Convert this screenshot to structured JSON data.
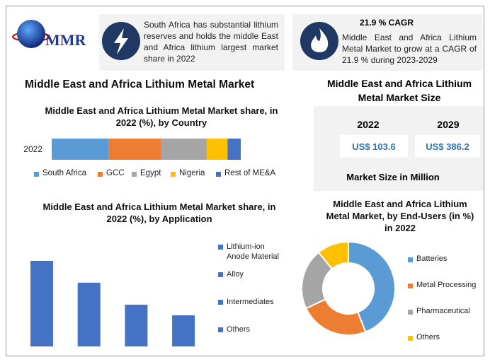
{
  "header": {
    "logo": "MMR",
    "facts": [
      {
        "text": "South Africa has substantial lithium reserves and holds the middle East and Africa lithium largest market share in 2022"
      },
      {
        "title": "21.9 % CAGR",
        "text": "Middle East and Africa Lithium Metal Market to grow at a CAGR of 21.9 % during 2023-2029"
      }
    ]
  },
  "title": "Middle East and Africa Lithium Metal Market",
  "market_size": {
    "title": "Middle East and Africa Lithium Metal Market Size",
    "columns": [
      {
        "year": "2022",
        "value": "US$ 103.6"
      },
      {
        "year": "2029",
        "value": "US$ 386.2"
      }
    ],
    "note": "Market Size in Million"
  },
  "chart_data": [
    {
      "type": "stacked-bar",
      "orientation": "horizontal",
      "title": "Middle East and Africa Lithium Metal Market share, in 2022 (%), by Country",
      "categories": [
        "2022"
      ],
      "series": [
        {
          "name": "South Africa",
          "color": "#5b9bd5",
          "values": [
            30
          ]
        },
        {
          "name": "GCC",
          "color": "#ed7d31",
          "values": [
            28
          ]
        },
        {
          "name": "Egypt",
          "color": "#a5a5a5",
          "values": [
            24
          ]
        },
        {
          "name": "Nigeria",
          "color": "#ffc000",
          "values": [
            11
          ]
        },
        {
          "name": "Rest of ME&A",
          "color": "#4472c4",
          "values": [
            7
          ]
        }
      ]
    },
    {
      "type": "bar",
      "title": "Middle East and Africa Lithium Metal Market share, in 2022 (%), by Application",
      "categories": [
        "Lithium-ion Anode Material",
        "Alloy",
        "Intermediates",
        "Others"
      ],
      "values": [
        38.5,
        28.7,
        18.8,
        14
      ],
      "color": "#4472c4"
    },
    {
      "type": "pie",
      "donut": true,
      "title": "Middle East and Africa Lithium Metal Market, by End-Users (in %) in 2022",
      "categories": [
        "Batteries",
        "Metal Processing",
        "Pharmaceutical",
        "Others"
      ],
      "values": [
        44,
        24,
        21,
        11
      ],
      "colors": [
        "#5b9bd5",
        "#ed7d31",
        "#a5a5a5",
        "#ffc000"
      ]
    }
  ]
}
